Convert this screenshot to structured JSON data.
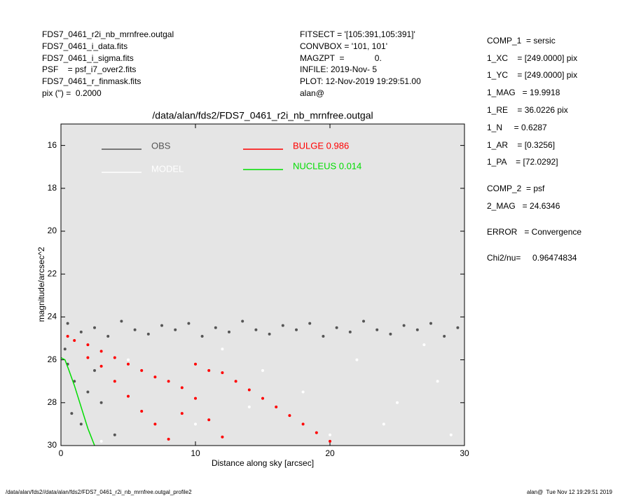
{
  "header_left": [
    "FDS7_0461_r2i_nb_mrnfree.outgal",
    "FDS7_0461_i_data.fits",
    "FDS7_0461_i_sigma.fits",
    "PSF    = psf_i7_over2.fits",
    "FDS7_0461_r_finmask.fits",
    "pix (\") =  0.2000"
  ],
  "header_middle": [
    "FITSECT = '[105:391,105:391]'",
    "CONVBOX = '101, 101'",
    "MAGZPT  =             0.",
    "INFILE: 2019-Nov- 5",
    "PLOT: 12-Nov-2019 19:29:51.00",
    "alan@"
  ],
  "params": [
    "COMP_1  = sersic",
    "1_XC    = [249.0000] pix",
    "1_YC    = [249.0000] pix",
    "1_MAG   = 19.9918",
    "1_RE    = 36.0226 pix",
    "1_N     = 0.6287",
    "1_AR    = [0.3256]",
    "1_PA    = [72.0292]",
    "COMP_2  = psf",
    "2_MAG   = 24.6346",
    "ERROR   = Convergence",
    "Chi2/nu=     0.96474834"
  ],
  "footer_left": "/data/alan/fds2//data/alan/fds2/FDS7_0461_r2i_nb_mrnfree.outgal_profile2",
  "footer_right": "alan@  Tue Nov 12 19:29:51 2019",
  "chart_data": {
    "type": "scatter",
    "title": "/data/alan/fds2/FDS7_0461_r2i_nb_mrnfree.outgal",
    "x_label": "Distance along sky [arcsec]",
    "y_label": "magnitude/arcsec^2",
    "xlim": [
      0,
      30
    ],
    "xticks": [
      0,
      10,
      20,
      30
    ],
    "ylim": [
      30,
      15
    ],
    "yticks": [
      16,
      18,
      20,
      22,
      24,
      26,
      28,
      30
    ],
    "background": "#e5e5e5",
    "series": [
      {
        "name": "OBS",
        "color": "#555555",
        "mode": "markers",
        "x": [
          0.5,
          1.5,
          2.5,
          3.5,
          4.5,
          5.5,
          6.5,
          7.5,
          8.5,
          9.5,
          10.5,
          11.5,
          12.5,
          13.5,
          14.5,
          15.5,
          16.5,
          17.5,
          18.5,
          19.5,
          20.5,
          21.5,
          22.5,
          23.5,
          24.5,
          25.5,
          26.5,
          27.5,
          28.5,
          29.5,
          0.5,
          1,
          0.8,
          2,
          1.5,
          3,
          2.5,
          4,
          0.3
        ],
        "values": [
          24.3,
          24.7,
          24.5,
          24.9,
          24.2,
          24.6,
          24.8,
          24.4,
          24.6,
          24.3,
          24.9,
          24.5,
          24.7,
          24.2,
          24.6,
          24.8,
          24.4,
          24.6,
          24.3,
          24.9,
          24.5,
          24.7,
          24.2,
          24.6,
          24.8,
          24.4,
          24.6,
          24.3,
          24.9,
          24.5,
          26.2,
          27,
          28.5,
          27.5,
          29,
          28,
          26.5,
          29.5,
          25.5
        ]
      },
      {
        "name": "MODEL",
        "color": "#ffffff",
        "mode": "markers",
        "x": [
          5,
          8,
          12,
          15,
          18,
          22,
          25,
          28,
          10,
          20,
          27,
          3,
          14,
          24,
          29
        ],
        "values": [
          26,
          27,
          25.5,
          26.5,
          27.5,
          26,
          28,
          27,
          29,
          29.5,
          25.3,
          29.8,
          28.2,
          29,
          29.5
        ]
      },
      {
        "name": "BULGE  0.986",
        "color": "#ff0000",
        "mode": "markers",
        "x": [
          0.5,
          1,
          2,
          2,
          3,
          3,
          4,
          4,
          5,
          5,
          6,
          6,
          7,
          7,
          8,
          8,
          9,
          9,
          10,
          10,
          11,
          11,
          12,
          12,
          13,
          14,
          15,
          16,
          17,
          18,
          19,
          20
        ],
        "values": [
          24.9,
          25.1,
          25.3,
          25.9,
          26.3,
          25.6,
          25.9,
          27,
          26.2,
          27.7,
          26.5,
          28.4,
          26.8,
          29,
          27,
          29.7,
          27.3,
          28.5,
          26.2,
          27.8,
          26.5,
          28.8,
          26.6,
          29.6,
          27,
          27.4,
          27.8,
          28.2,
          28.6,
          29,
          29.4,
          29.8
        ]
      },
      {
        "name": "NUCLEUS  0.014",
        "color": "#00dd00",
        "mode": "line",
        "x": [
          0,
          0.3,
          0.6,
          1,
          1.5,
          2,
          2.5
        ],
        "values": [
          25.9,
          26,
          26.5,
          27.2,
          28.2,
          29.2,
          30
        ]
      }
    ]
  }
}
